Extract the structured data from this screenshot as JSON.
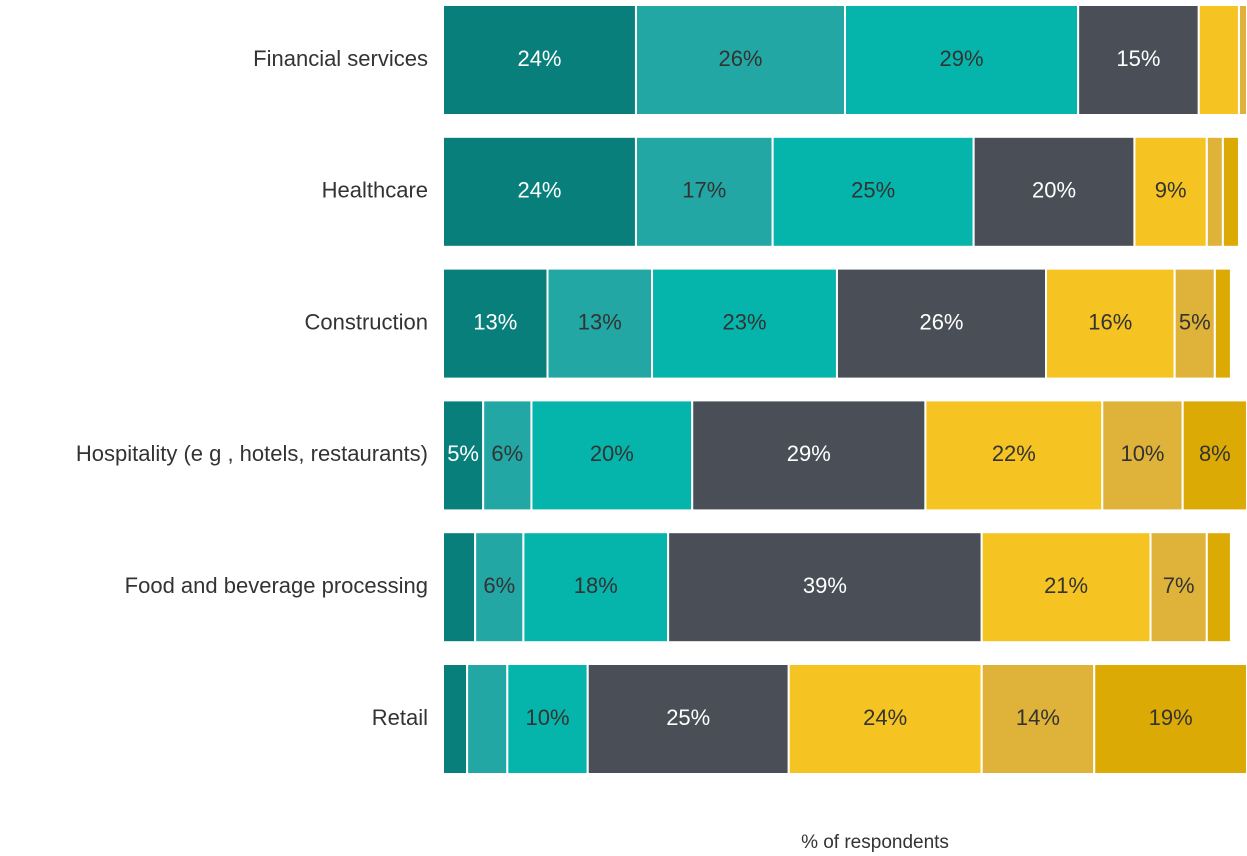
{
  "chart_data": {
    "type": "stacked-bar-horizontal",
    "categories": [
      "Financial services",
      "Healthcare",
      "Construction",
      "Hospitality (e g , hotels, restaurants)",
      "Food and beverage processing",
      "Retail"
    ],
    "xlabel": "% of respondents",
    "xlim": [
      0,
      100
    ],
    "series": [
      {
        "color": "#087f7a",
        "values": [
          24,
          24,
          13,
          5,
          4,
          3
        ],
        "value_labels": [
          "24%",
          "24%",
          "13%",
          "5%",
          null,
          null
        ]
      },
      {
        "color": "#22a7a4",
        "values": [
          26,
          17,
          13,
          6,
          6,
          5
        ],
        "value_labels": [
          "26%",
          "17%",
          "13%",
          "6%",
          "6%",
          null
        ]
      },
      {
        "color": "#05b5ab",
        "values": [
          29,
          25,
          23,
          20,
          18,
          10
        ],
        "value_labels": [
          "29%",
          "25%",
          "23%",
          "20%",
          "18%",
          "10%"
        ]
      },
      {
        "color": "#4a4f57",
        "values": [
          15,
          20,
          26,
          29,
          39,
          25
        ],
        "value_labels": [
          "15%",
          "20%",
          "26%",
          "29%",
          "39%",
          "25%"
        ]
      },
      {
        "color": "#f5c423",
        "values": [
          5,
          9,
          16,
          22,
          21,
          24
        ],
        "value_labels": [
          null,
          "9%",
          "16%",
          "22%",
          "21%",
          "24%"
        ]
      },
      {
        "color": "#dfb33a",
        "values": [
          1,
          2,
          5,
          10,
          7,
          14
        ],
        "value_labels": [
          null,
          null,
          "5%",
          "10%",
          "7%",
          "14%"
        ]
      },
      {
        "color": "#dcaa05",
        "values": [
          0,
          2,
          2,
          8,
          3,
          19
        ],
        "value_labels": [
          null,
          null,
          null,
          "8%",
          null,
          "19%"
        ]
      }
    ]
  }
}
